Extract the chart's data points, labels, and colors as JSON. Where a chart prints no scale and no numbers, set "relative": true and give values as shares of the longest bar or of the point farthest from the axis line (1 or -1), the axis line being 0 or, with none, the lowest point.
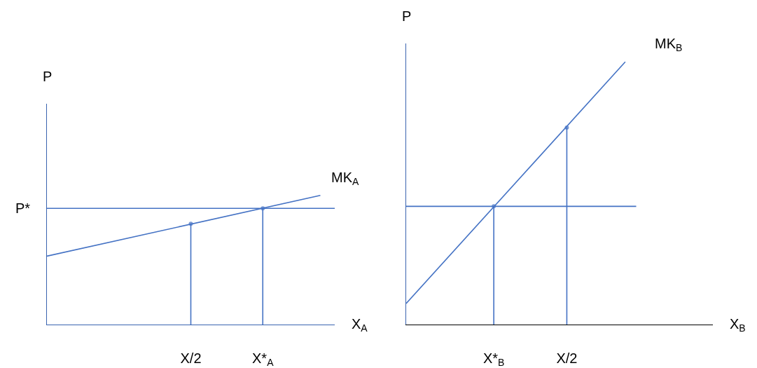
{
  "chart_data": [
    {
      "type": "line",
      "relative": true,
      "xlabel": "X$_{A}$",
      "ylabel": "P",
      "categories": [
        null,
        null,
        null,
        null,
        null,
        null,
        null,
        null,
        null,
        null,
        "X/2",
        null,
        null,
        null,
        null,
        "X*$_{A}$",
        null,
        null,
        null,
        null,
        null
      ],
      "series": [
        {
          "name": "MK$_{A}$",
          "color": "#4472c4",
          "values": [
            0.53,
            null,
            null,
            null,
            null,
            null,
            null,
            null,
            null,
            null,
            null,
            null,
            null,
            null,
            null,
            null,
            null,
            null,
            null,
            1,
            null
          ]
        },
        {
          "type": "lollipop",
          "color": "#4472c4",
          "values": [
            null,
            null,
            null,
            null,
            null,
            null,
            null,
            null,
            null,
            null,
            0.78,
            null,
            null,
            null,
            null,
            0.9,
            null,
            null,
            null,
            null,
            null
          ]
        }
      ],
      "ref_lines": [
        {
          "axis": "y",
          "value": 0.9,
          "label": "P*",
          "color": "#4472c4"
        }
      ]
    },
    {
      "type": "line",
      "relative": true,
      "xlabel": "X$_{B}$",
      "ylabel": "P",
      "categories": [
        null,
        null,
        null,
        null,
        null,
        null,
        "X*$_{B}$",
        null,
        null,
        null,
        null,
        "X/2",
        null,
        null,
        null,
        null,
        null,
        null,
        null,
        null,
        null,
        null
      ],
      "series": [
        {
          "name": "MK$_{B}$",
          "color": "#4472c4",
          "values": [
            0.08,
            null,
            null,
            null,
            null,
            null,
            null,
            null,
            null,
            null,
            null,
            null,
            null,
            null,
            null,
            1,
            null,
            null,
            null,
            null,
            null,
            null
          ]
        },
        {
          "type": "lollipop",
          "color": "#4472c4",
          "values": [
            null,
            null,
            null,
            null,
            null,
            null,
            0.45,
            null,
            null,
            null,
            null,
            0.75,
            null,
            null,
            null,
            null,
            null,
            null,
            null,
            null,
            null,
            null
          ]
        }
      ],
      "ref_lines": [
        {
          "axis": "y",
          "value": 0.45,
          "color": "#4472c4"
        }
      ]
    }
  ]
}
